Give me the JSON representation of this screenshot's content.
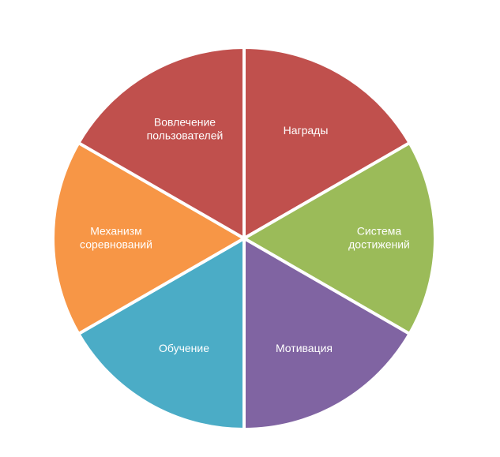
{
  "segments": [
    {
      "lines": [
        "Награды"
      ],
      "color": "#C0504D"
    },
    {
      "lines": [
        "Система",
        "достижений"
      ],
      "color": "#9BBB59"
    },
    {
      "lines": [
        "Мотивация"
      ],
      "color": "#8064A2"
    },
    {
      "lines": [
        "Обучение"
      ],
      "color": "#4BACC6"
    },
    {
      "lines": [
        "Механизм",
        "соревнований"
      ],
      "color": "#F79646"
    },
    {
      "lines": [
        "Вовлечение",
        "пользователей"
      ],
      "color": "#C0504D"
    }
  ]
}
